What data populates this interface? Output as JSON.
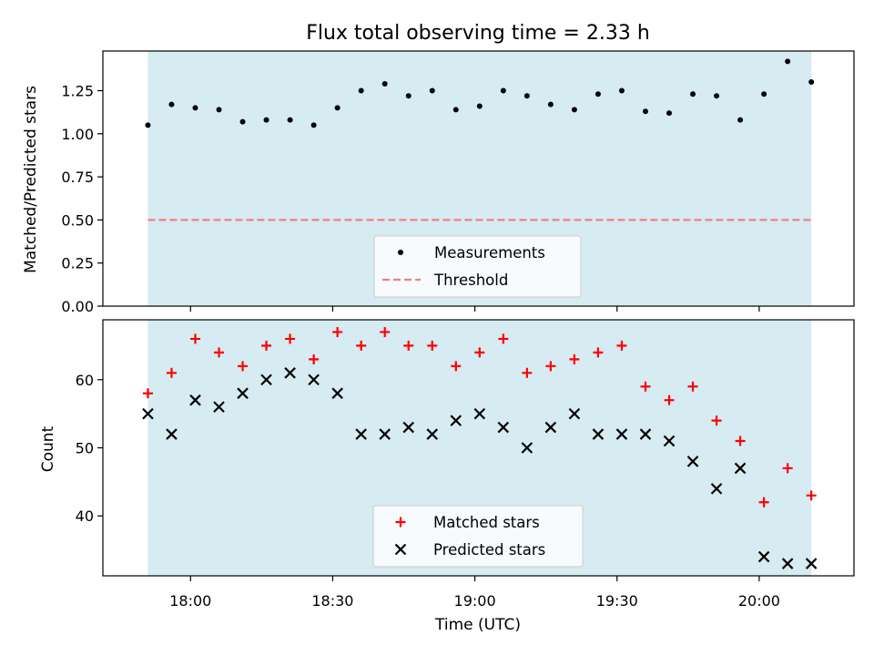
{
  "title": "Flux total observing time = 2.33 h",
  "colors": {
    "shade": "#add8e6",
    "measurement": "#000000",
    "threshold": "#f08080",
    "matched": "#ff0000",
    "predicted": "#000000"
  },
  "chart_data": [
    {
      "type": "scatter",
      "ylabel": "Matched/Predicted stars",
      "xlabel": "",
      "ylim": [
        0,
        1.48
      ],
      "yticks": [
        "0.00",
        "0.25",
        "0.50",
        "0.75",
        "1.00",
        "1.25"
      ],
      "threshold": 0.5,
      "shaded_range": [
        "17:51",
        "20:11"
      ],
      "legend": {
        "placement": "lower-center",
        "entries": [
          "Measurements",
          "Threshold"
        ]
      },
      "series": [
        {
          "name": "Measurements",
          "x": [
            "17:51",
            "17:56",
            "18:01",
            "18:06",
            "18:11",
            "18:16",
            "18:21",
            "18:26",
            "18:31",
            "18:36",
            "18:41",
            "18:46",
            "18:51",
            "18:56",
            "19:01",
            "19:06",
            "19:11",
            "19:16",
            "19:21",
            "19:26",
            "19:31",
            "19:36",
            "19:41",
            "19:46",
            "19:51",
            "19:56",
            "20:01",
            "20:06",
            "20:11"
          ],
          "y": [
            1.05,
            1.17,
            1.15,
            1.14,
            1.07,
            1.08,
            1.08,
            1.05,
            1.15,
            1.25,
            1.29,
            1.22,
            1.25,
            1.14,
            1.16,
            1.25,
            1.22,
            1.17,
            1.14,
            1.23,
            1.25,
            1.13,
            1.12,
            1.23,
            1.22,
            1.08,
            1.23,
            1.42,
            1.3
          ]
        }
      ]
    },
    {
      "type": "scatter",
      "ylabel": "Count",
      "xlabel": "Time (UTC)",
      "ylim": [
        31.2,
        68.8
      ],
      "yticks": [
        "40",
        "50",
        "60"
      ],
      "xticks": [
        "18:00",
        "18:30",
        "19:00",
        "19:30",
        "20:00"
      ],
      "shaded_range": [
        "17:51",
        "20:11"
      ],
      "legend": {
        "placement": "lower-center",
        "entries": [
          "Matched stars",
          "Predicted stars"
        ]
      },
      "series": [
        {
          "name": "Matched stars",
          "x": [
            "17:51",
            "17:56",
            "18:01",
            "18:06",
            "18:11",
            "18:16",
            "18:21",
            "18:26",
            "18:31",
            "18:36",
            "18:41",
            "18:46",
            "18:51",
            "18:56",
            "19:01",
            "19:06",
            "19:11",
            "19:16",
            "19:21",
            "19:26",
            "19:31",
            "19:36",
            "19:41",
            "19:46",
            "19:51",
            "19:56",
            "20:01",
            "20:06",
            "20:11"
          ],
          "y": [
            58,
            61,
            66,
            64,
            62,
            65,
            66,
            63,
            67,
            65,
            67,
            65,
            65,
            62,
            64,
            66,
            61,
            62,
            63,
            64,
            65,
            59,
            57,
            59,
            54,
            51,
            42,
            47,
            43
          ]
        },
        {
          "name": "Predicted stars",
          "x": [
            "17:51",
            "17:56",
            "18:01",
            "18:06",
            "18:11",
            "18:16",
            "18:21",
            "18:26",
            "18:31",
            "18:36",
            "18:41",
            "18:46",
            "18:51",
            "18:56",
            "19:01",
            "19:06",
            "19:11",
            "19:16",
            "19:21",
            "19:26",
            "19:31",
            "19:36",
            "19:41",
            "19:46",
            "19:51",
            "19:56",
            "20:01",
            "20:06",
            "20:11"
          ],
          "y": [
            55,
            52,
            57,
            56,
            58,
            60,
            61,
            60,
            58,
            52,
            52,
            53,
            52,
            54,
            55,
            53,
            50,
            53,
            55,
            52,
            52,
            52,
            51,
            48,
            44,
            47,
            34,
            33,
            33
          ]
        }
      ]
    }
  ]
}
